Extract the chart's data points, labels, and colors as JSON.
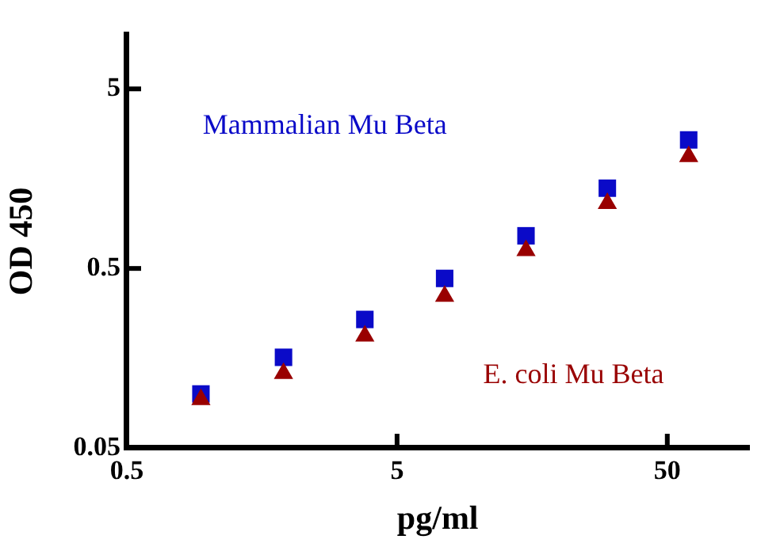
{
  "chart_data": {
    "type": "scatter",
    "xlabel": "pg/ml",
    "ylabel": "OD 450",
    "log": "xy",
    "x": [
      0.94,
      1.9,
      3.8,
      7.5,
      15,
      30,
      60
    ],
    "xlim": [
      0.5,
      100
    ],
    "xticks": [
      0.5,
      5,
      50
    ],
    "ylim": [
      0.05,
      10
    ],
    "yticks": [
      0.05,
      0.5,
      5
    ],
    "series": [
      {
        "name": "Mammalian Mu Beta",
        "color": "#0a0ac8",
        "marker": "square",
        "values": [
          0.1,
          0.16,
          0.26,
          0.44,
          0.76,
          1.4,
          2.6
        ]
      },
      {
        "name": "E. coli Mu Beta",
        "color": "#990000",
        "marker": "triangle",
        "values": [
          0.093,
          0.13,
          0.21,
          0.35,
          0.63,
          1.15,
          2.1
        ]
      }
    ]
  }
}
